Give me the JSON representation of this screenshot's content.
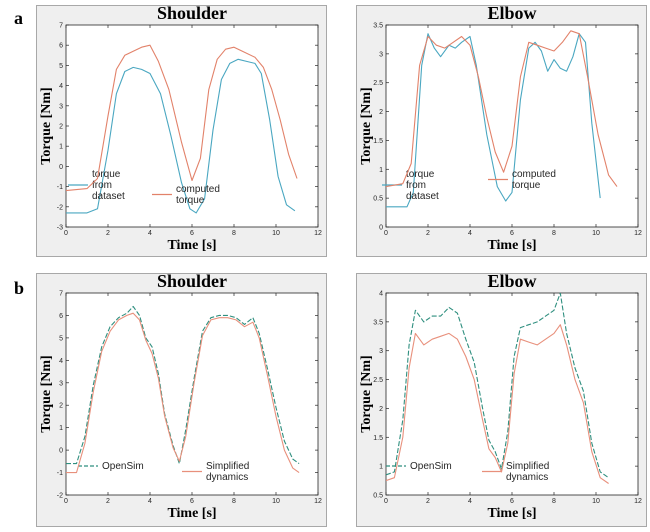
{
  "panel_labels": [
    "a",
    "b"
  ],
  "colors": {
    "blue": "#4aa7c1",
    "orange": "#e2826a",
    "green": "#2f8f7f",
    "salmon": "#e8907c"
  },
  "chart_data": [
    {
      "type": "line",
      "title": "Shoulder",
      "xlabel": "Time [s]",
      "ylabel": "Torque [Nm]",
      "xlim": [
        0,
        12
      ],
      "ylim": [
        -3,
        7
      ],
      "xticks": [
        0,
        2,
        4,
        6,
        8,
        10,
        12
      ],
      "yticks": [
        -3,
        -2,
        -1,
        0,
        1,
        2,
        3,
        4,
        5,
        6,
        7
      ],
      "legend_position": "bottom",
      "series": [
        {
          "name": [
            "torque",
            "from",
            "dataset"
          ],
          "color": "#4aa7c1",
          "style": "solid",
          "points": [
            [
              0,
              -2.3
            ],
            [
              1,
              -2.3
            ],
            [
              1.5,
              -2.1
            ],
            [
              2,
              0.8
            ],
            [
              2.4,
              3.6
            ],
            [
              2.8,
              4.7
            ],
            [
              3.2,
              4.9
            ],
            [
              3.6,
              4.8
            ],
            [
              4,
              4.6
            ],
            [
              4.5,
              3.6
            ],
            [
              5,
              1.5
            ],
            [
              5.5,
              -0.8
            ],
            [
              5.9,
              -2.1
            ],
            [
              6.2,
              -2.3
            ],
            [
              6.6,
              -1.6
            ],
            [
              7,
              1.8
            ],
            [
              7.4,
              4.3
            ],
            [
              7.8,
              5.1
            ],
            [
              8.2,
              5.3
            ],
            [
              8.6,
              5.2
            ],
            [
              9,
              5.1
            ],
            [
              9.3,
              4.6
            ],
            [
              9.7,
              2.3
            ],
            [
              10.1,
              -0.5
            ],
            [
              10.5,
              -1.9
            ],
            [
              10.9,
              -2.2
            ]
          ]
        },
        {
          "name": [
            "computed",
            "torque"
          ],
          "color": "#e2826a",
          "style": "solid",
          "points": [
            [
              0,
              -1.2
            ],
            [
              1,
              -1.1
            ],
            [
              1.5,
              -0.6
            ],
            [
              2,
              2.5
            ],
            [
              2.4,
              4.8
            ],
            [
              2.8,
              5.5
            ],
            [
              3.2,
              5.7
            ],
            [
              3.6,
              5.9
            ],
            [
              4,
              6
            ],
            [
              4.4,
              5.2
            ],
            [
              4.9,
              3.8
            ],
            [
              5.5,
              1.2
            ],
            [
              6,
              -0.7
            ],
            [
              6.4,
              0.4
            ],
            [
              6.8,
              3.8
            ],
            [
              7.2,
              5.3
            ],
            [
              7.6,
              5.8
            ],
            [
              8,
              5.9
            ],
            [
              8.4,
              5.7
            ],
            [
              9,
              5.4
            ],
            [
              9.4,
              4.9
            ],
            [
              9.8,
              3.8
            ],
            [
              10.2,
              2.3
            ],
            [
              10.6,
              0.6
            ],
            [
              11,
              -0.6
            ]
          ]
        }
      ]
    },
    {
      "type": "line",
      "title": "Elbow",
      "xlabel": "Time [s]",
      "ylabel": "Torque [Nm]",
      "xlim": [
        0,
        12
      ],
      "ylim": [
        0,
        3.5
      ],
      "xticks": [
        0,
        2,
        4,
        6,
        8,
        10,
        12
      ],
      "yticks": [
        0,
        0.5,
        1,
        1.5,
        2,
        2.5,
        3,
        3.5
      ],
      "legend_position": "bottom",
      "series": [
        {
          "name": [
            "torque",
            "from",
            "dataset"
          ],
          "color": "#4aa7c1",
          "style": "solid",
          "points": [
            [
              0,
              0.35
            ],
            [
              1,
              0.35
            ],
            [
              1.3,
              0.6
            ],
            [
              1.7,
              2.8
            ],
            [
              2,
              3.35
            ],
            [
              2.3,
              3.1
            ],
            [
              2.6,
              2.95
            ],
            [
              3,
              3.15
            ],
            [
              3.3,
              3.1
            ],
            [
              3.6,
              3.2
            ],
            [
              4,
              3.3
            ],
            [
              4.3,
              2.8
            ],
            [
              4.8,
              1.6
            ],
            [
              5.3,
              0.7
            ],
            [
              5.7,
              0.45
            ],
            [
              6,
              0.6
            ],
            [
              6.4,
              2.2
            ],
            [
              6.8,
              3.1
            ],
            [
              7.1,
              3.2
            ],
            [
              7.4,
              3.05
            ],
            [
              7.7,
              2.7
            ],
            [
              8,
              2.9
            ],
            [
              8.3,
              2.75
            ],
            [
              8.6,
              2.7
            ],
            [
              8.9,
              2.95
            ],
            [
              9.2,
              3.35
            ],
            [
              9.5,
              3.2
            ],
            [
              9.8,
              1.8
            ],
            [
              10.2,
              0.5
            ]
          ]
        },
        {
          "name": [
            "computed",
            "torque"
          ],
          "color": "#e2826a",
          "style": "solid",
          "points": [
            [
              0,
              0.7
            ],
            [
              0.8,
              0.75
            ],
            [
              1.2,
              1.1
            ],
            [
              1.6,
              2.8
            ],
            [
              2,
              3.3
            ],
            [
              2.4,
              3.15
            ],
            [
              2.8,
              3.1
            ],
            [
              3.2,
              3.2
            ],
            [
              3.6,
              3.3
            ],
            [
              4,
              3.15
            ],
            [
              4.4,
              2.6
            ],
            [
              4.8,
              1.9
            ],
            [
              5.2,
              1.3
            ],
            [
              5.6,
              0.95
            ],
            [
              6,
              1.4
            ],
            [
              6.4,
              2.6
            ],
            [
              6.8,
              3.2
            ],
            [
              7.2,
              3.15
            ],
            [
              7.6,
              3.1
            ],
            [
              8,
              3.05
            ],
            [
              8.4,
              3.2
            ],
            [
              8.8,
              3.4
            ],
            [
              9.2,
              3.35
            ],
            [
              9.6,
              2.6
            ],
            [
              10.1,
              1.6
            ],
            [
              10.6,
              0.9
            ],
            [
              11,
              0.7
            ]
          ]
        }
      ]
    },
    {
      "type": "line",
      "title": "Shoulder",
      "xlabel": "Time [s]",
      "ylabel": "Torque [Nm]",
      "xlim": [
        0,
        12
      ],
      "ylim": [
        -2,
        7
      ],
      "xticks": [
        0,
        2,
        4,
        6,
        8,
        10,
        12
      ],
      "yticks": [
        -2,
        -1,
        0,
        1,
        2,
        3,
        4,
        5,
        6,
        7
      ],
      "legend_position": "bottom",
      "series": [
        {
          "name": [
            "OpenSim"
          ],
          "color": "#2f8f7f",
          "style": "dashed",
          "points": [
            [
              0,
              -0.6
            ],
            [
              0.5,
              -0.6
            ],
            [
              0.9,
              0.6
            ],
            [
              1.3,
              2.9
            ],
            [
              1.7,
              4.6
            ],
            [
              2.1,
              5.5
            ],
            [
              2.5,
              5.9
            ],
            [
              2.9,
              6.1
            ],
            [
              3.2,
              6.4
            ],
            [
              3.5,
              6
            ],
            [
              3.8,
              5
            ],
            [
              4.1,
              4.6
            ],
            [
              4.4,
              3.4
            ],
            [
              4.7,
              1.6
            ],
            [
              5.1,
              0.2
            ],
            [
              5.4,
              -0.6
            ],
            [
              5.7,
              0.9
            ],
            [
              6.1,
              3.2
            ],
            [
              6.5,
              5.3
            ],
            [
              6.9,
              5.9
            ],
            [
              7.3,
              6
            ],
            [
              7.7,
              6
            ],
            [
              8.1,
              5.9
            ],
            [
              8.5,
              5.6
            ],
            [
              8.9,
              5.9
            ],
            [
              9.2,
              5.2
            ],
            [
              9.6,
              3.6
            ],
            [
              10,
              1.9
            ],
            [
              10.4,
              0.4
            ],
            [
              10.8,
              -0.4
            ],
            [
              11.1,
              -0.6
            ]
          ]
        },
        {
          "name": [
            "Simplified",
            "dynamics"
          ],
          "color": "#e8907c",
          "style": "solid",
          "points": [
            [
              0,
              -1.0
            ],
            [
              0.5,
              -1.0
            ],
            [
              0.9,
              0.3
            ],
            [
              1.3,
              2.6
            ],
            [
              1.7,
              4.4
            ],
            [
              2.1,
              5.3
            ],
            [
              2.5,
              5.8
            ],
            [
              2.9,
              6
            ],
            [
              3.2,
              6.1
            ],
            [
              3.5,
              5.8
            ],
            [
              3.8,
              4.9
            ],
            [
              4.1,
              4.3
            ],
            [
              4.4,
              3.2
            ],
            [
              4.7,
              1.5
            ],
            [
              5.1,
              0.1
            ],
            [
              5.4,
              -0.5
            ],
            [
              5.7,
              0.6
            ],
            [
              6.1,
              3
            ],
            [
              6.5,
              5.1
            ],
            [
              6.9,
              5.8
            ],
            [
              7.3,
              5.9
            ],
            [
              7.7,
              5.9
            ],
            [
              8.1,
              5.8
            ],
            [
              8.5,
              5.5
            ],
            [
              8.9,
              5.7
            ],
            [
              9.2,
              5.0
            ],
            [
              9.6,
              3.3
            ],
            [
              10,
              1.5
            ],
            [
              10.4,
              0
            ],
            [
              10.8,
              -0.8
            ],
            [
              11.1,
              -1.0
            ]
          ]
        }
      ]
    },
    {
      "type": "line",
      "title": "Elbow",
      "xlabel": "Time [s]",
      "ylabel": "Torque [Nm]",
      "xlim": [
        0,
        12
      ],
      "ylim": [
        0.5,
        4
      ],
      "xticks": [
        0,
        2,
        4,
        6,
        8,
        10,
        12
      ],
      "yticks": [
        0.5,
        1,
        1.5,
        2,
        2.5,
        3,
        3.5,
        4
      ],
      "legend_position": "bottom",
      "series": [
        {
          "name": [
            "OpenSim"
          ],
          "color": "#2f8f7f",
          "style": "dashed",
          "points": [
            [
              0,
              0.85
            ],
            [
              0.4,
              0.9
            ],
            [
              0.8,
              1.8
            ],
            [
              1.1,
              3.1
            ],
            [
              1.4,
              3.7
            ],
            [
              1.8,
              3.5
            ],
            [
              2.2,
              3.6
            ],
            [
              2.6,
              3.6
            ],
            [
              3,
              3.75
            ],
            [
              3.4,
              3.65
            ],
            [
              3.8,
              3.2
            ],
            [
              4.2,
              2.8
            ],
            [
              4.6,
              2.0
            ],
            [
              4.9,
              1.45
            ],
            [
              5.2,
              1.25
            ],
            [
              5.5,
              0.95
            ],
            [
              5.8,
              1.6
            ],
            [
              6.1,
              2.9
            ],
            [
              6.4,
              3.4
            ],
            [
              6.8,
              3.45
            ],
            [
              7.2,
              3.5
            ],
            [
              7.6,
              3.6
            ],
            [
              8,
              3.7
            ],
            [
              8.3,
              4
            ],
            [
              8.6,
              3.3
            ],
            [
              9,
              2.7
            ],
            [
              9.4,
              2.3
            ],
            [
              9.8,
              1.4
            ],
            [
              10.2,
              0.9
            ],
            [
              10.6,
              0.8
            ]
          ]
        },
        {
          "name": [
            "Simplified",
            "dynamics"
          ],
          "color": "#e8907c",
          "style": "solid",
          "points": [
            [
              0,
              0.75
            ],
            [
              0.4,
              0.8
            ],
            [
              0.8,
              1.5
            ],
            [
              1.1,
              2.7
            ],
            [
              1.4,
              3.3
            ],
            [
              1.8,
              3.1
            ],
            [
              2.2,
              3.2
            ],
            [
              2.6,
              3.25
            ],
            [
              3,
              3.3
            ],
            [
              3.4,
              3.2
            ],
            [
              3.8,
              2.9
            ],
            [
              4.2,
              2.5
            ],
            [
              4.6,
              1.8
            ],
            [
              4.9,
              1.3
            ],
            [
              5.2,
              1.15
            ],
            [
              5.5,
              0.9
            ],
            [
              5.8,
              1.4
            ],
            [
              6.1,
              2.6
            ],
            [
              6.4,
              3.2
            ],
            [
              6.8,
              3.15
            ],
            [
              7.2,
              3.1
            ],
            [
              7.6,
              3.2
            ],
            [
              8,
              3.3
            ],
            [
              8.3,
              3.45
            ],
            [
              8.6,
              3.1
            ],
            [
              9,
              2.5
            ],
            [
              9.4,
              2.1
            ],
            [
              9.8,
              1.25
            ],
            [
              10.2,
              0.8
            ],
            [
              10.6,
              0.7
            ]
          ]
        }
      ]
    }
  ]
}
